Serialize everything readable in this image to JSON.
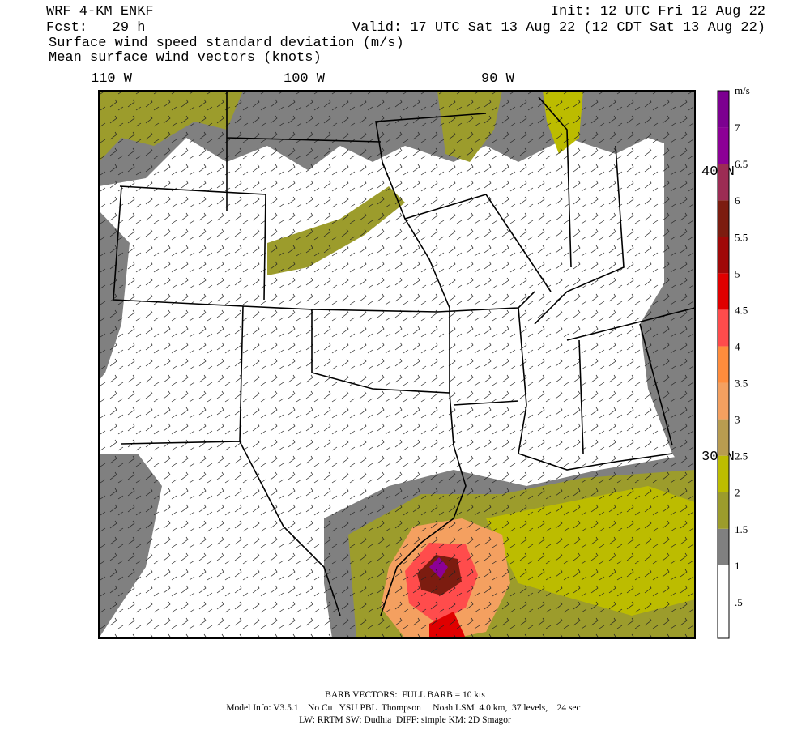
{
  "header": {
    "model": "WRF 4-KM ENKF",
    "forecast": "Fcst:   29 h",
    "init": "Init: 12 UTC Fri 12 Aug 22",
    "valid": "Valid: 17 UTC Sat 13 Aug 22 (12 CDT Sat 13 Aug 22)",
    "field": "Surface wind speed standard deviation (m/s)",
    "vectors": "Mean surface wind vectors (knots)"
  },
  "map": {
    "lon_labels": [
      "110 W",
      "100 W",
      "90 W"
    ],
    "lat_labels": [
      "40 N",
      "30 N"
    ]
  },
  "colorbar": {
    "unit": "m/s",
    "labels": [
      ".5",
      "1",
      "1.5",
      "2",
      "2.5",
      "3",
      "3.5",
      "4",
      "4.5",
      "5",
      "5.5",
      "6",
      "6.5",
      "7"
    ],
    "colors": [
      "#ffffff",
      "#ffffff",
      "#808080",
      "#9c9c2c",
      "#bcbc00",
      "#b89c50",
      "#f4a060",
      "#ff8c3c",
      "#ff4c4c",
      "#e00000",
      "#a00808",
      "#7c1c10",
      "#9c2c54",
      "#8c0096",
      "#7c0090"
    ]
  },
  "footer": {
    "barbs": "BARB VECTORS:  FULL BARB = 10 kts",
    "model_info": "Model Info: V3.5.1    No Cu   YSU PBL  Thompson     Noah LSM  4.0 km,  37 levels,    24 sec",
    "physics": "LW: RRTM SW: Dudhia  DIFF: simple KM: 2D Smagor"
  }
}
